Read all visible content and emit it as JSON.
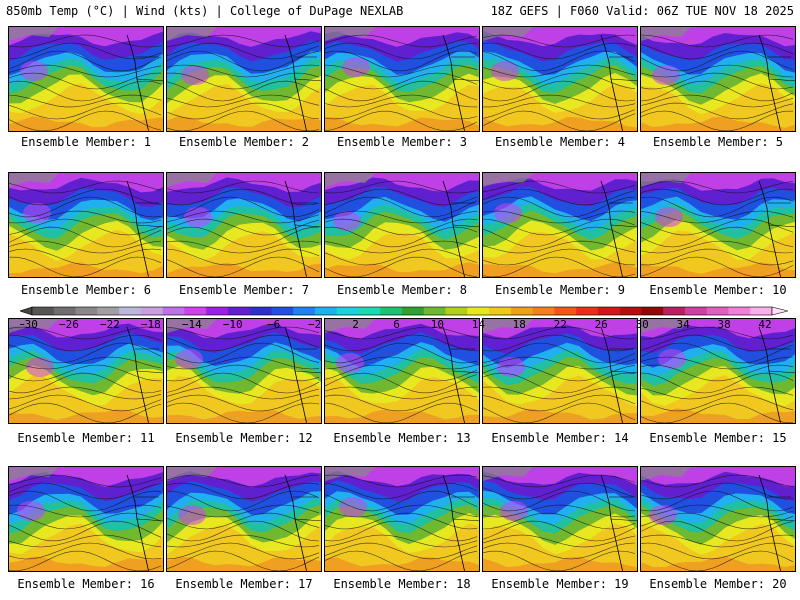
{
  "header": {
    "left": "850mb Temp (°C) | Wind (kts) | College of DuPage NEXLAB",
    "right": "18Z GEFS | F060 Valid: 06Z TUE NOV 18 2025"
  },
  "members": [
    "Ensemble Member: 1",
    "Ensemble Member: 2",
    "Ensemble Member: 3",
    "Ensemble Member: 4",
    "Ensemble Member: 5",
    "Ensemble Member: 6",
    "Ensemble Member: 7",
    "Ensemble Member: 8",
    "Ensemble Member: 9",
    "Ensemble Member: 10",
    "Ensemble Member: 11",
    "Ensemble Member: 12",
    "Ensemble Member: 13",
    "Ensemble Member: 14",
    "Ensemble Member: 15",
    "Ensemble Member: 16",
    "Ensemble Member: 17",
    "Ensemble Member: 18",
    "Ensemble Member: 19",
    "Ensemble Member: 20"
  ],
  "colorbar": {
    "labels": [
      "−30",
      "−26",
      "−22",
      "−18",
      "−14",
      "−10",
      "−6",
      "−2",
      "2",
      "6",
      "10",
      "14",
      "18",
      "22",
      "26",
      "30",
      "34",
      "38",
      "42"
    ],
    "colors": [
      "#555555",
      "#6e6e6e",
      "#888888",
      "#a0a0a0",
      "#b8b8d8",
      "#c8a0e0",
      "#c070e8",
      "#d040f0",
      "#a020e0",
      "#6020d0",
      "#3030c8",
      "#2050e0",
      "#2080f0",
      "#20b0f0",
      "#20d0e0",
      "#20d8b0",
      "#20c070",
      "#30a030",
      "#70b830",
      "#b0d020",
      "#e8e820",
      "#f0c820",
      "#f0a020",
      "#f08020",
      "#f05818",
      "#e83018",
      "#d01818",
      "#b01010",
      "#900808",
      "#b82060",
      "#d040a0",
      "#e060c0",
      "#f080d8",
      "#f8b0e8"
    ]
  }
}
